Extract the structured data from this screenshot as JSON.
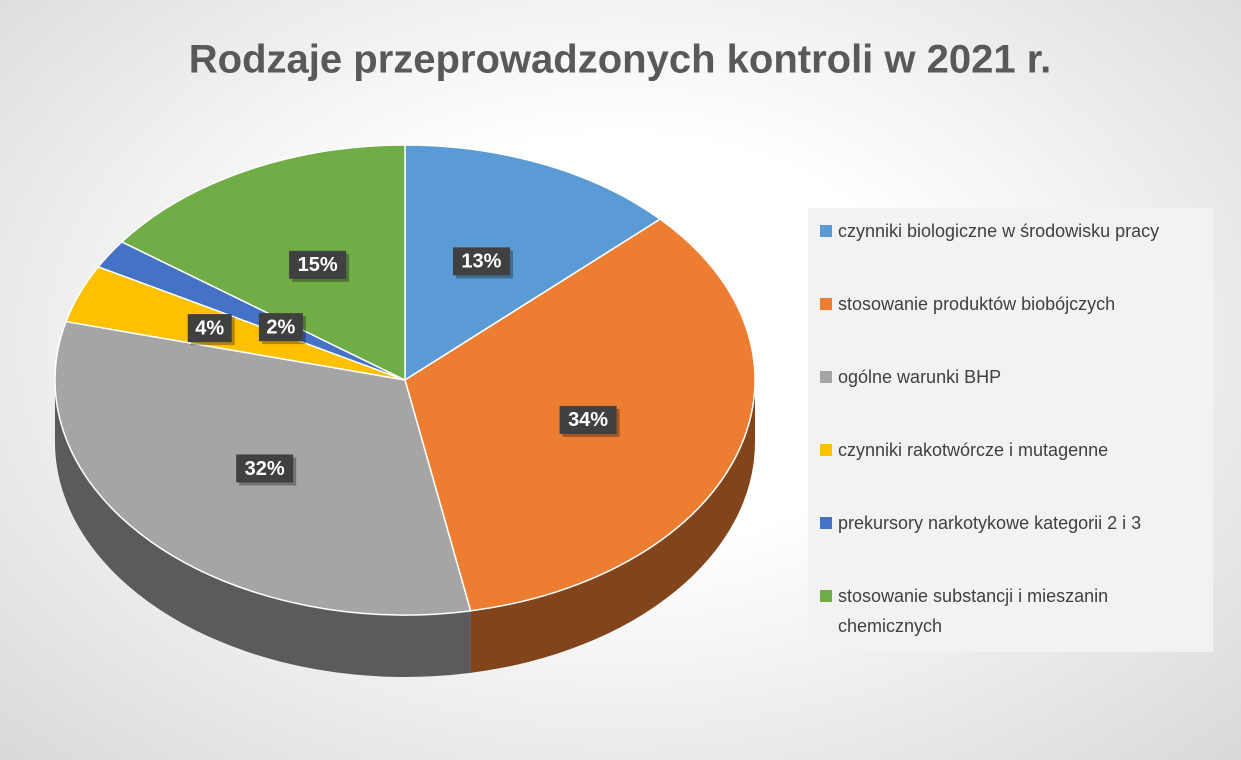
{
  "chart_data": {
    "type": "pie",
    "title": "Rodzaje przeprowadzonych kontroli w 2021 r.",
    "categories": [
      "czynniki biologiczne w środowisku pracy",
      "stosowanie produktów biobójczych",
      "ogólne warunki BHP",
      "czynniki rakotwórcze i mutagenne",
      "prekursory narkotykowe kategorii 2 i 3",
      "stosowanie substancji i mieszanin chemicznych"
    ],
    "values": [
      13,
      34,
      32,
      4,
      2,
      15
    ],
    "value_labels": [
      "13%",
      "34%",
      "32%",
      "4%",
      "2%",
      "15%"
    ],
    "colors": [
      "#5b9bd5",
      "#ed7d31",
      "#a5a5a5",
      "#ffc000",
      "#4472c4",
      "#70ad47"
    ],
    "legend": "right"
  }
}
